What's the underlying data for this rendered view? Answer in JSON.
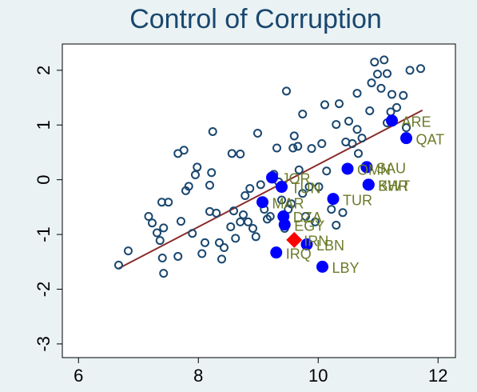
{
  "chart_data": {
    "type": "scatter",
    "title": "Control of Corruption",
    "xlim": [
      5.73,
      12.29
    ],
    "ylim": [
      -3.25,
      2.48
    ],
    "xticks": [
      6,
      8,
      10,
      12
    ],
    "yticks": [
      2,
      1,
      0,
      -1,
      -2,
      -3
    ],
    "series": [
      {
        "color": "#1a476f",
        "marker": "hollow-circle",
        "x": [
          6.67,
          6.83,
          7.17,
          7.23,
          7.31,
          7.36,
          7.42,
          7.39,
          7.5,
          7.4,
          7.42,
          7.66,
          7.76,
          7.66,
          7.71,
          7.79,
          7.84,
          7.9,
          7.95,
          7.98,
          8.06,
          8.11,
          8.19,
          8.22,
          8.24,
          8.19,
          8.3,
          8.35,
          8.39,
          8.43,
          8.54,
          8.56,
          8.59,
          8.62,
          8.7,
          8.7,
          8.75,
          8.78,
          8.83,
          8.86,
          8.91,
          8.96,
          8.99,
          9.04,
          9.1,
          9.15,
          9.2,
          9.26,
          9.31,
          9.34,
          9.39,
          9.44,
          9.47,
          9.5,
          9.55,
          9.58,
          9.6,
          9.66,
          9.68,
          9.74,
          9.79,
          9.85,
          9.89,
          9.95,
          10.01,
          10.06,
          10.11,
          10.14,
          10.22,
          10.3,
          10.35,
          10.41,
          10.46,
          10.51,
          10.57,
          10.65,
          10.67,
          10.73,
          10.78,
          10.86,
          10.89,
          10.94,
          10.99,
          11.05,
          11.1,
          11.15,
          11.21,
          11.23,
          11.31,
          11.42,
          11.47,
          11.53,
          11.71,
          10.3,
          9.74,
          10.65,
          11.15
        ],
        "y": [
          -1.56,
          -1.3,
          -0.67,
          -0.79,
          -0.97,
          -1.11,
          -0.88,
          -0.41,
          -0.41,
          -1.43,
          -1.71,
          0.48,
          0.54,
          -1.4,
          -0.76,
          -0.2,
          -0.12,
          -0.98,
          0.09,
          0.23,
          -1.35,
          -1.15,
          -0.1,
          0.13,
          0.88,
          -0.58,
          -0.61,
          -1.15,
          -1.45,
          -1.24,
          -0.86,
          0.48,
          -0.57,
          -1.07,
          0.47,
          -0.77,
          -0.64,
          -0.29,
          -0.77,
          -0.16,
          -0.89,
          -1.04,
          0.85,
          -0.09,
          -0.54,
          -0.72,
          -0.67,
          0.1,
          0.58,
          -0.04,
          -0.37,
          -0.89,
          1.62,
          -0.54,
          -0.44,
          0.58,
          0.8,
          0.61,
          0.18,
          -0.25,
          -0.67,
          -0.13,
          0.57,
          -0.77,
          -0.13,
          0.66,
          1.37,
          0.16,
          -0.54,
          -0.83,
          1.39,
          -0.6,
          0.69,
          1.07,
          0.66,
          1.58,
          0.48,
          0.76,
          0.22,
          1.26,
          1.77,
          2.15,
          1.93,
          1.67,
          2.19,
          1.94,
          1.24,
          1.56,
          1.32,
          1.54,
          0.95,
          2.0,
          2.03,
          1.01,
          1.2,
          0.92,
          1.04
        ]
      },
      {
        "color": "#0000ff",
        "marker": "filled-circle",
        "label_color": "#6b7b2a",
        "x": [
          11.23,
          11.47,
          10.81,
          10.49,
          10.84,
          10.84,
          10.25,
          9.23,
          9.39,
          9.07,
          9.42,
          9.44,
          9.81,
          9.3,
          10.07
        ],
        "y": [
          1.08,
          0.76,
          0.23,
          0.2,
          -0.09,
          -0.09,
          -0.35,
          0.04,
          -0.13,
          -0.41,
          -0.67,
          -0.82,
          -1.18,
          -1.33,
          -1.59
        ],
        "labels": [
          "ARE",
          "QAT",
          "SAU",
          "OMN",
          "KWT",
          "BHR",
          "TUR",
          "JOR",
          "TUN",
          "MAR",
          "DZA",
          "EGY",
          "LBN",
          "IRQ",
          "LBY"
        ]
      },
      {
        "color": "#ff0000",
        "marker": "diamond",
        "label_color": "#6b7b2a",
        "x": [
          9.6
        ],
        "y": [
          -1.1
        ],
        "labels": [
          "IRN"
        ]
      }
    ],
    "fit_line": {
      "color": "#8b2c2c",
      "x": [
        6.67,
        11.74
      ],
      "y": [
        -1.62,
        1.27
      ]
    }
  }
}
